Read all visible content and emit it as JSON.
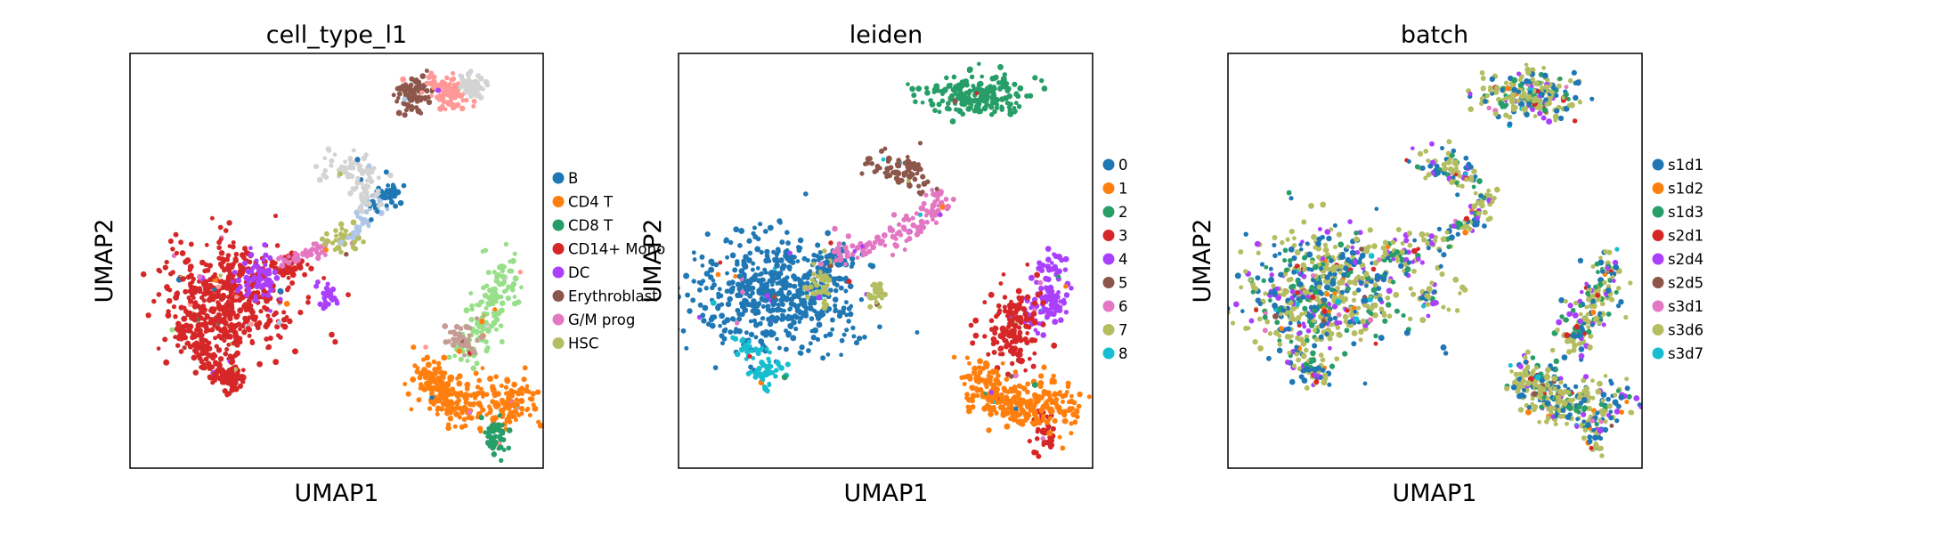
{
  "chart_data": [
    {
      "type": "scatter",
      "title": "cell_type_l1",
      "xlabel": "UMAP1",
      "ylabel": "UMAP2",
      "legend_placement": "right",
      "grid": false,
      "ticks": false,
      "legend": [
        {
          "name": "B",
          "color": "#1f77b4"
        },
        {
          "name": "CD4 T",
          "color": "#ff7f0e"
        },
        {
          "name": "CD8 T",
          "color": "#279e68"
        },
        {
          "name": "CD14+ Mono",
          "color": "#d62728"
        },
        {
          "name": "DC",
          "color": "#aa40fc"
        },
        {
          "name": "Erythroblast",
          "color": "#8c564b"
        },
        {
          "name": "G/M prog",
          "color": "#e377c2"
        },
        {
          "name": "HSC",
          "color": "#b5bd61"
        }
      ],
      "extra_point_colors": [
        "#d3d3d3",
        "#ff9896",
        "#98df8a",
        "#aec7e8",
        "#c49c94"
      ],
      "clusters": [
        {
          "color": "#d62728",
          "shape": "blob",
          "cx": 0.24,
          "cy": 0.59,
          "rx": 0.15,
          "ry": 0.12,
          "n": 520
        },
        {
          "color": "#d62728",
          "shape": "line",
          "pts": [
            [
              0.13,
              0.66
            ],
            [
              0.2,
              0.75
            ],
            [
              0.25,
              0.8
            ],
            [
              0.24,
              0.76
            ]
          ],
          "w": 0.04,
          "n": 160
        },
        {
          "color": "#d62728",
          "shape": "line",
          "pts": [
            [
              0.36,
              0.52
            ],
            [
              0.42,
              0.51
            ]
          ],
          "w": 0.03,
          "n": 40
        },
        {
          "color": "#aa40fc",
          "shape": "blob",
          "cx": 0.31,
          "cy": 0.55,
          "rx": 0.05,
          "ry": 0.05,
          "n": 70
        },
        {
          "color": "#aa40fc",
          "shape": "blob",
          "cx": 0.48,
          "cy": 0.58,
          "rx": 0.02,
          "ry": 0.03,
          "n": 25
        },
        {
          "color": "#e377c2",
          "shape": "line",
          "pts": [
            [
              0.36,
              0.5
            ],
            [
              0.48,
              0.47
            ]
          ],
          "w": 0.02,
          "n": 40
        },
        {
          "color": "#b5bd61",
          "shape": "blob",
          "cx": 0.51,
          "cy": 0.45,
          "rx": 0.04,
          "ry": 0.03,
          "n": 40
        },
        {
          "color": "#aec7e8",
          "shape": "line",
          "pts": [
            [
              0.53,
              0.45
            ],
            [
              0.6,
              0.36
            ]
          ],
          "w": 0.03,
          "n": 30
        },
        {
          "color": "#1f77b4",
          "shape": "line",
          "pts": [
            [
              0.6,
              0.36
            ],
            [
              0.64,
              0.33
            ]
          ],
          "w": 0.035,
          "n": 40
        },
        {
          "color": "#d3d3d3",
          "shape": "line",
          "pts": [
            [
              0.46,
              0.27
            ],
            [
              0.55,
              0.27
            ],
            [
              0.58,
              0.32
            ],
            [
              0.57,
              0.36
            ]
          ],
          "w": 0.04,
          "n": 90
        },
        {
          "color": "#8c564b",
          "shape": "blob",
          "cx": 0.69,
          "cy": 0.1,
          "rx": 0.04,
          "ry": 0.04,
          "n": 80
        },
        {
          "color": "#ff9896",
          "shape": "blob",
          "cx": 0.77,
          "cy": 0.09,
          "rx": 0.04,
          "ry": 0.04,
          "n": 80
        },
        {
          "color": "#d3d3d3",
          "shape": "blob",
          "cx": 0.83,
          "cy": 0.08,
          "rx": 0.03,
          "ry": 0.03,
          "n": 60
        },
        {
          "color": "#98df8a",
          "shape": "line",
          "pts": [
            [
              0.9,
              0.5
            ],
            [
              0.9,
              0.58
            ],
            [
              0.85,
              0.65
            ],
            [
              0.82,
              0.73
            ]
          ],
          "w": 0.05,
          "n": 150
        },
        {
          "color": "#c49c94",
          "shape": "blob",
          "cx": 0.8,
          "cy": 0.69,
          "rx": 0.03,
          "ry": 0.03,
          "n": 40
        },
        {
          "color": "#ff7f0e",
          "shape": "line",
          "pts": [
            [
              0.72,
              0.77
            ],
            [
              0.76,
              0.83
            ],
            [
              0.86,
              0.85
            ],
            [
              0.95,
              0.84
            ]
          ],
          "w": 0.065,
          "n": 300
        },
        {
          "color": "#279e68",
          "shape": "line",
          "pts": [
            [
              0.88,
              0.88
            ],
            [
              0.89,
              0.92
            ],
            [
              0.88,
              0.96
            ]
          ],
          "w": 0.03,
          "n": 50
        }
      ]
    },
    {
      "type": "scatter",
      "title": "leiden",
      "xlabel": "UMAP1",
      "ylabel": "UMAP2",
      "legend_placement": "right",
      "grid": false,
      "ticks": false,
      "legend": [
        {
          "name": "0",
          "color": "#1f77b4"
        },
        {
          "name": "1",
          "color": "#ff7f0e"
        },
        {
          "name": "2",
          "color": "#279e68"
        },
        {
          "name": "3",
          "color": "#d62728"
        },
        {
          "name": "4",
          "color": "#aa40fc"
        },
        {
          "name": "5",
          "color": "#8c564b"
        },
        {
          "name": "6",
          "color": "#e377c2"
        },
        {
          "name": "7",
          "color": "#b5bd61"
        },
        {
          "name": "8",
          "color": "#17becf"
        }
      ],
      "clusters": [
        {
          "color": "#1f77b4",
          "shape": "blob",
          "cx": 0.24,
          "cy": 0.57,
          "rx": 0.18,
          "ry": 0.13,
          "n": 560
        },
        {
          "color": "#1f77b4",
          "shape": "line",
          "pts": [
            [
              0.35,
              0.5
            ],
            [
              0.4,
              0.49
            ]
          ],
          "w": 0.03,
          "n": 40
        },
        {
          "color": "#17becf",
          "shape": "line",
          "pts": [
            [
              0.15,
              0.7
            ],
            [
              0.2,
              0.76
            ],
            [
              0.23,
              0.78
            ]
          ],
          "w": 0.04,
          "n": 70
        },
        {
          "color": "#e377c2",
          "shape": "line",
          "pts": [
            [
              0.37,
              0.49
            ],
            [
              0.5,
              0.46
            ],
            [
              0.6,
              0.4
            ],
            [
              0.63,
              0.34
            ]
          ],
          "w": 0.035,
          "n": 120
        },
        {
          "color": "#8c564b",
          "shape": "line",
          "pts": [
            [
              0.46,
              0.27
            ],
            [
              0.55,
              0.27
            ],
            [
              0.58,
              0.31
            ]
          ],
          "w": 0.05,
          "n": 80
        },
        {
          "color": "#b5bd61",
          "shape": "blob",
          "cx": 0.34,
          "cy": 0.56,
          "rx": 0.03,
          "ry": 0.04,
          "n": 35
        },
        {
          "color": "#b5bd61",
          "shape": "blob",
          "cx": 0.48,
          "cy": 0.58,
          "rx": 0.02,
          "ry": 0.03,
          "n": 25
        },
        {
          "color": "#279e68",
          "shape": "blob",
          "cx": 0.73,
          "cy": 0.1,
          "rx": 0.11,
          "ry": 0.05,
          "n": 220
        },
        {
          "color": "#aa40fc",
          "shape": "line",
          "pts": [
            [
              0.9,
              0.5
            ],
            [
              0.9,
              0.6
            ],
            [
              0.86,
              0.63
            ]
          ],
          "w": 0.05,
          "n": 110
        },
        {
          "color": "#d62728",
          "shape": "blob",
          "cx": 0.81,
          "cy": 0.66,
          "rx": 0.06,
          "ry": 0.08,
          "n": 150
        },
        {
          "color": "#d62728",
          "shape": "line",
          "pts": [
            [
              0.88,
              0.88
            ],
            [
              0.89,
              0.92
            ],
            [
              0.88,
              0.96
            ]
          ],
          "w": 0.03,
          "n": 40
        },
        {
          "color": "#ff7f0e",
          "shape": "line",
          "pts": [
            [
              0.72,
              0.77
            ],
            [
              0.76,
              0.83
            ],
            [
              0.86,
              0.85
            ],
            [
              0.95,
              0.84
            ]
          ],
          "w": 0.065,
          "n": 300
        }
      ]
    },
    {
      "type": "scatter",
      "title": "batch",
      "xlabel": "UMAP1",
      "ylabel": "UMAP2",
      "legend_placement": "right",
      "grid": false,
      "ticks": false,
      "legend": [
        {
          "name": "s1d1",
          "color": "#1f77b4"
        },
        {
          "name": "s1d2",
          "color": "#ff7f0e"
        },
        {
          "name": "s1d3",
          "color": "#279e68"
        },
        {
          "name": "s2d1",
          "color": "#d62728"
        },
        {
          "name": "s2d4",
          "color": "#aa40fc"
        },
        {
          "name": "s2d5",
          "color": "#8c564b"
        },
        {
          "name": "s3d1",
          "color": "#e377c2"
        },
        {
          "name": "s3d6",
          "color": "#b5bd61"
        },
        {
          "name": "s3d7",
          "color": "#17becf"
        }
      ],
      "mixed_weights": [
        0.24,
        0.01,
        0.12,
        0.03,
        0.1,
        0.01,
        0.01,
        0.47,
        0.01
      ],
      "clusters": [
        {
          "shape": "blob",
          "cx": 0.24,
          "cy": 0.57,
          "rx": 0.18,
          "ry": 0.13,
          "n": 620
        },
        {
          "shape": "line",
          "pts": [
            [
              0.15,
              0.7
            ],
            [
              0.2,
              0.76
            ],
            [
              0.23,
              0.78
            ]
          ],
          "w": 0.04,
          "n": 70
        },
        {
          "shape": "line",
          "pts": [
            [
              0.37,
              0.49
            ],
            [
              0.5,
              0.46
            ],
            [
              0.6,
              0.4
            ],
            [
              0.63,
              0.34
            ]
          ],
          "w": 0.035,
          "n": 120
        },
        {
          "shape": "line",
          "pts": [
            [
              0.46,
              0.27
            ],
            [
              0.55,
              0.27
            ],
            [
              0.58,
              0.31
            ]
          ],
          "w": 0.05,
          "n": 80
        },
        {
          "shape": "blob",
          "cx": 0.48,
          "cy": 0.58,
          "rx": 0.02,
          "ry": 0.03,
          "n": 25
        },
        {
          "shape": "blob",
          "cx": 0.73,
          "cy": 0.1,
          "rx": 0.11,
          "ry": 0.05,
          "n": 220
        },
        {
          "shape": "line",
          "pts": [
            [
              0.9,
              0.5
            ],
            [
              0.9,
              0.6
            ],
            [
              0.85,
              0.65
            ],
            [
              0.82,
              0.72
            ]
          ],
          "w": 0.05,
          "n": 180
        },
        {
          "shape": "line",
          "pts": [
            [
              0.72,
              0.77
            ],
            [
              0.76,
              0.83
            ],
            [
              0.86,
              0.85
            ],
            [
              0.95,
              0.84
            ]
          ],
          "w": 0.065,
          "n": 300
        },
        {
          "shape": "line",
          "pts": [
            [
              0.88,
              0.88
            ],
            [
              0.89,
              0.92
            ],
            [
              0.88,
              0.96
            ]
          ],
          "w": 0.03,
          "n": 40
        }
      ]
    }
  ]
}
